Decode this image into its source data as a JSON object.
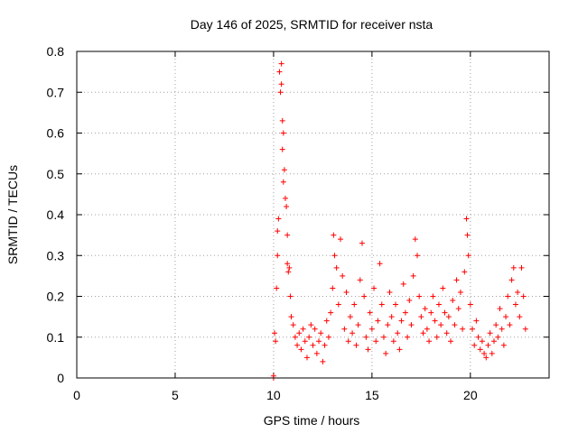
{
  "chart_data": {
    "type": "scatter",
    "title": "Day 146 of 2025, SRMTID for receiver nsta",
    "xlabel": "GPS time / hours",
    "ylabel": "SRMTID / TECUs",
    "xlim": [
      0,
      24
    ],
    "ylim": [
      0,
      0.8
    ],
    "xticks": [
      "0",
      "5",
      "10",
      "15",
      "20"
    ],
    "yticks": [
      "0",
      "0.1",
      "0.2",
      "0.3",
      "0.4",
      "0.5",
      "0.6",
      "0.7",
      "0.8"
    ],
    "grid": true,
    "marker": "+",
    "color": "#ff0000",
    "series": [
      {
        "name": "SRMTID",
        "points": [
          [
            10.0,
            0.0
          ],
          [
            10.0,
            0.005
          ],
          [
            10.05,
            0.11
          ],
          [
            10.1,
            0.09
          ],
          [
            10.15,
            0.22
          ],
          [
            10.2,
            0.3
          ],
          [
            10.2,
            0.36
          ],
          [
            10.25,
            0.39
          ],
          [
            10.3,
            0.75
          ],
          [
            10.35,
            0.7
          ],
          [
            10.4,
            0.77
          ],
          [
            10.4,
            0.72
          ],
          [
            10.45,
            0.63
          ],
          [
            10.45,
            0.56
          ],
          [
            10.5,
            0.6
          ],
          [
            10.5,
            0.48
          ],
          [
            10.55,
            0.51
          ],
          [
            10.6,
            0.44
          ],
          [
            10.65,
            0.42
          ],
          [
            10.7,
            0.35
          ],
          [
            10.7,
            0.28
          ],
          [
            10.75,
            0.26
          ],
          [
            10.8,
            0.27
          ],
          [
            10.85,
            0.2
          ],
          [
            10.9,
            0.15
          ],
          [
            11.0,
            0.13
          ],
          [
            11.1,
            0.1
          ],
          [
            11.2,
            0.08
          ],
          [
            11.3,
            0.11
          ],
          [
            11.4,
            0.07
          ],
          [
            11.5,
            0.12
          ],
          [
            11.6,
            0.09
          ],
          [
            11.7,
            0.05
          ],
          [
            11.8,
            0.1
          ],
          [
            11.9,
            0.13
          ],
          [
            12.0,
            0.08
          ],
          [
            12.1,
            0.12
          ],
          [
            12.2,
            0.06
          ],
          [
            12.3,
            0.09
          ],
          [
            12.4,
            0.11
          ],
          [
            12.5,
            0.04
          ],
          [
            12.6,
            0.08
          ],
          [
            12.7,
            0.14
          ],
          [
            12.8,
            0.1
          ],
          [
            12.9,
            0.16
          ],
          [
            13.0,
            0.22
          ],
          [
            13.05,
            0.35
          ],
          [
            13.1,
            0.3
          ],
          [
            13.2,
            0.27
          ],
          [
            13.3,
            0.18
          ],
          [
            13.4,
            0.34
          ],
          [
            13.5,
            0.25
          ],
          [
            13.6,
            0.12
          ],
          [
            13.7,
            0.21
          ],
          [
            13.8,
            0.09
          ],
          [
            13.9,
            0.15
          ],
          [
            14.0,
            0.11
          ],
          [
            14.1,
            0.18
          ],
          [
            14.2,
            0.08
          ],
          [
            14.3,
            0.13
          ],
          [
            14.4,
            0.24
          ],
          [
            14.5,
            0.33
          ],
          [
            14.6,
            0.2
          ],
          [
            14.7,
            0.1
          ],
          [
            14.8,
            0.07
          ],
          [
            14.9,
            0.16
          ],
          [
            15.0,
            0.12
          ],
          [
            15.1,
            0.22
          ],
          [
            15.2,
            0.09
          ],
          [
            15.3,
            0.14
          ],
          [
            15.4,
            0.28
          ],
          [
            15.5,
            0.18
          ],
          [
            15.6,
            0.1
          ],
          [
            15.7,
            0.06
          ],
          [
            15.8,
            0.13
          ],
          [
            15.9,
            0.21
          ],
          [
            16.0,
            0.15
          ],
          [
            16.1,
            0.09
          ],
          [
            16.2,
            0.18
          ],
          [
            16.3,
            0.11
          ],
          [
            16.4,
            0.07
          ],
          [
            16.5,
            0.14
          ],
          [
            16.6,
            0.23
          ],
          [
            16.7,
            0.16
          ],
          [
            16.8,
            0.1
          ],
          [
            16.9,
            0.19
          ],
          [
            17.0,
            0.13
          ],
          [
            17.1,
            0.25
          ],
          [
            17.2,
            0.34
          ],
          [
            17.3,
            0.3
          ],
          [
            17.4,
            0.2
          ],
          [
            17.5,
            0.15
          ],
          [
            17.6,
            0.11
          ],
          [
            17.7,
            0.17
          ],
          [
            17.8,
            0.12
          ],
          [
            17.9,
            0.09
          ],
          [
            18.0,
            0.16
          ],
          [
            18.1,
            0.2
          ],
          [
            18.2,
            0.14
          ],
          [
            18.3,
            0.1
          ],
          [
            18.4,
            0.18
          ],
          [
            18.5,
            0.13
          ],
          [
            18.6,
            0.22
          ],
          [
            18.7,
            0.16
          ],
          [
            18.8,
            0.11
          ],
          [
            18.9,
            0.15
          ],
          [
            19.0,
            0.09
          ],
          [
            19.1,
            0.19
          ],
          [
            19.2,
            0.13
          ],
          [
            19.3,
            0.24
          ],
          [
            19.4,
            0.17
          ],
          [
            19.5,
            0.21
          ],
          [
            19.6,
            0.12
          ],
          [
            19.7,
            0.26
          ],
          [
            19.8,
            0.39
          ],
          [
            19.85,
            0.35
          ],
          [
            19.9,
            0.3
          ],
          [
            20.0,
            0.18
          ],
          [
            20.1,
            0.12
          ],
          [
            20.2,
            0.08
          ],
          [
            20.3,
            0.14
          ],
          [
            20.4,
            0.1
          ],
          [
            20.5,
            0.07
          ],
          [
            20.6,
            0.09
          ],
          [
            20.7,
            0.06
          ],
          [
            20.8,
            0.05
          ],
          [
            20.9,
            0.08
          ],
          [
            21.0,
            0.11
          ],
          [
            21.1,
            0.06
          ],
          [
            21.2,
            0.09
          ],
          [
            21.3,
            0.13
          ],
          [
            21.4,
            0.1
          ],
          [
            21.5,
            0.17
          ],
          [
            21.6,
            0.12
          ],
          [
            21.7,
            0.08
          ],
          [
            21.8,
            0.15
          ],
          [
            21.9,
            0.2
          ],
          [
            22.0,
            0.13
          ],
          [
            22.1,
            0.24
          ],
          [
            22.2,
            0.27
          ],
          [
            22.3,
            0.18
          ],
          [
            22.4,
            0.21
          ],
          [
            22.5,
            0.15
          ],
          [
            22.6,
            0.27
          ],
          [
            22.7,
            0.2
          ],
          [
            22.8,
            0.12
          ]
        ]
      }
    ]
  }
}
